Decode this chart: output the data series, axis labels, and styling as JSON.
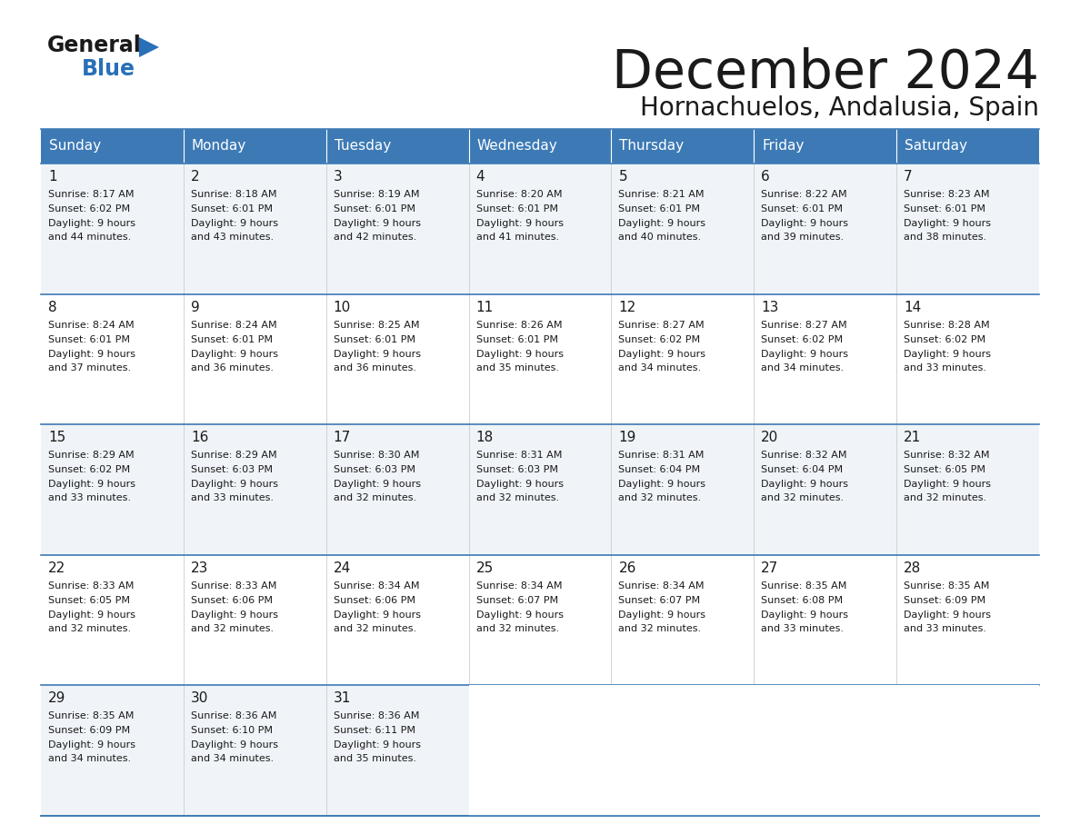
{
  "title": "December 2024",
  "subtitle": "Hornachuelos, Andalusia, Spain",
  "header_color": "#3d7ab5",
  "header_text_color": "#ffffff",
  "day_names": [
    "Sunday",
    "Monday",
    "Tuesday",
    "Wednesday",
    "Thursday",
    "Friday",
    "Saturday"
  ],
  "days": [
    {
      "day": 1,
      "col": 0,
      "row": 0,
      "sunrise": "8:17 AM",
      "sunset": "6:02 PM",
      "daylight_line1": "Daylight: 9 hours",
      "daylight_line2": "and 44 minutes."
    },
    {
      "day": 2,
      "col": 1,
      "row": 0,
      "sunrise": "8:18 AM",
      "sunset": "6:01 PM",
      "daylight_line1": "Daylight: 9 hours",
      "daylight_line2": "and 43 minutes."
    },
    {
      "day": 3,
      "col": 2,
      "row": 0,
      "sunrise": "8:19 AM",
      "sunset": "6:01 PM",
      "daylight_line1": "Daylight: 9 hours",
      "daylight_line2": "and 42 minutes."
    },
    {
      "day": 4,
      "col": 3,
      "row": 0,
      "sunrise": "8:20 AM",
      "sunset": "6:01 PM",
      "daylight_line1": "Daylight: 9 hours",
      "daylight_line2": "and 41 minutes."
    },
    {
      "day": 5,
      "col": 4,
      "row": 0,
      "sunrise": "8:21 AM",
      "sunset": "6:01 PM",
      "daylight_line1": "Daylight: 9 hours",
      "daylight_line2": "and 40 minutes."
    },
    {
      "day": 6,
      "col": 5,
      "row": 0,
      "sunrise": "8:22 AM",
      "sunset": "6:01 PM",
      "daylight_line1": "Daylight: 9 hours",
      "daylight_line2": "and 39 minutes."
    },
    {
      "day": 7,
      "col": 6,
      "row": 0,
      "sunrise": "8:23 AM",
      "sunset": "6:01 PM",
      "daylight_line1": "Daylight: 9 hours",
      "daylight_line2": "and 38 minutes."
    },
    {
      "day": 8,
      "col": 0,
      "row": 1,
      "sunrise": "8:24 AM",
      "sunset": "6:01 PM",
      "daylight_line1": "Daylight: 9 hours",
      "daylight_line2": "and 37 minutes."
    },
    {
      "day": 9,
      "col": 1,
      "row": 1,
      "sunrise": "8:24 AM",
      "sunset": "6:01 PM",
      "daylight_line1": "Daylight: 9 hours",
      "daylight_line2": "and 36 minutes."
    },
    {
      "day": 10,
      "col": 2,
      "row": 1,
      "sunrise": "8:25 AM",
      "sunset": "6:01 PM",
      "daylight_line1": "Daylight: 9 hours",
      "daylight_line2": "and 36 minutes."
    },
    {
      "day": 11,
      "col": 3,
      "row": 1,
      "sunrise": "8:26 AM",
      "sunset": "6:01 PM",
      "daylight_line1": "Daylight: 9 hours",
      "daylight_line2": "and 35 minutes."
    },
    {
      "day": 12,
      "col": 4,
      "row": 1,
      "sunrise": "8:27 AM",
      "sunset": "6:02 PM",
      "daylight_line1": "Daylight: 9 hours",
      "daylight_line2": "and 34 minutes."
    },
    {
      "day": 13,
      "col": 5,
      "row": 1,
      "sunrise": "8:27 AM",
      "sunset": "6:02 PM",
      "daylight_line1": "Daylight: 9 hours",
      "daylight_line2": "and 34 minutes."
    },
    {
      "day": 14,
      "col": 6,
      "row": 1,
      "sunrise": "8:28 AM",
      "sunset": "6:02 PM",
      "daylight_line1": "Daylight: 9 hours",
      "daylight_line2": "and 33 minutes."
    },
    {
      "day": 15,
      "col": 0,
      "row": 2,
      "sunrise": "8:29 AM",
      "sunset": "6:02 PM",
      "daylight_line1": "Daylight: 9 hours",
      "daylight_line2": "and 33 minutes."
    },
    {
      "day": 16,
      "col": 1,
      "row": 2,
      "sunrise": "8:29 AM",
      "sunset": "6:03 PM",
      "daylight_line1": "Daylight: 9 hours",
      "daylight_line2": "and 33 minutes."
    },
    {
      "day": 17,
      "col": 2,
      "row": 2,
      "sunrise": "8:30 AM",
      "sunset": "6:03 PM",
      "daylight_line1": "Daylight: 9 hours",
      "daylight_line2": "and 32 minutes."
    },
    {
      "day": 18,
      "col": 3,
      "row": 2,
      "sunrise": "8:31 AM",
      "sunset": "6:03 PM",
      "daylight_line1": "Daylight: 9 hours",
      "daylight_line2": "and 32 minutes."
    },
    {
      "day": 19,
      "col": 4,
      "row": 2,
      "sunrise": "8:31 AM",
      "sunset": "6:04 PM",
      "daylight_line1": "Daylight: 9 hours",
      "daylight_line2": "and 32 minutes."
    },
    {
      "day": 20,
      "col": 5,
      "row": 2,
      "sunrise": "8:32 AM",
      "sunset": "6:04 PM",
      "daylight_line1": "Daylight: 9 hours",
      "daylight_line2": "and 32 minutes."
    },
    {
      "day": 21,
      "col": 6,
      "row": 2,
      "sunrise": "8:32 AM",
      "sunset": "6:05 PM",
      "daylight_line1": "Daylight: 9 hours",
      "daylight_line2": "and 32 minutes."
    },
    {
      "day": 22,
      "col": 0,
      "row": 3,
      "sunrise": "8:33 AM",
      "sunset": "6:05 PM",
      "daylight_line1": "Daylight: 9 hours",
      "daylight_line2": "and 32 minutes."
    },
    {
      "day": 23,
      "col": 1,
      "row": 3,
      "sunrise": "8:33 AM",
      "sunset": "6:06 PM",
      "daylight_line1": "Daylight: 9 hours",
      "daylight_line2": "and 32 minutes."
    },
    {
      "day": 24,
      "col": 2,
      "row": 3,
      "sunrise": "8:34 AM",
      "sunset": "6:06 PM",
      "daylight_line1": "Daylight: 9 hours",
      "daylight_line2": "and 32 minutes."
    },
    {
      "day": 25,
      "col": 3,
      "row": 3,
      "sunrise": "8:34 AM",
      "sunset": "6:07 PM",
      "daylight_line1": "Daylight: 9 hours",
      "daylight_line2": "and 32 minutes."
    },
    {
      "day": 26,
      "col": 4,
      "row": 3,
      "sunrise": "8:34 AM",
      "sunset": "6:07 PM",
      "daylight_line1": "Daylight: 9 hours",
      "daylight_line2": "and 32 minutes."
    },
    {
      "day": 27,
      "col": 5,
      "row": 3,
      "sunrise": "8:35 AM",
      "sunset": "6:08 PM",
      "daylight_line1": "Daylight: 9 hours",
      "daylight_line2": "and 33 minutes."
    },
    {
      "day": 28,
      "col": 6,
      "row": 3,
      "sunrise": "8:35 AM",
      "sunset": "6:09 PM",
      "daylight_line1": "Daylight: 9 hours",
      "daylight_line2": "and 33 minutes."
    },
    {
      "day": 29,
      "col": 0,
      "row": 4,
      "sunrise": "8:35 AM",
      "sunset": "6:09 PM",
      "daylight_line1": "Daylight: 9 hours",
      "daylight_line2": "and 34 minutes."
    },
    {
      "day": 30,
      "col": 1,
      "row": 4,
      "sunrise": "8:36 AM",
      "sunset": "6:10 PM",
      "daylight_line1": "Daylight: 9 hours",
      "daylight_line2": "and 34 minutes."
    },
    {
      "day": 31,
      "col": 2,
      "row": 4,
      "sunrise": "8:36 AM",
      "sunset": "6:11 PM",
      "daylight_line1": "Daylight: 9 hours",
      "daylight_line2": "and 35 minutes."
    }
  ],
  "logo_color_general": "#1a1a1a",
  "logo_color_blue": "#2970b8",
  "logo_triangle_color": "#2970b8",
  "row_colors": [
    "#f0f4f8",
    "#ffffff",
    "#f0f4f8",
    "#ffffff",
    "#f0f4f8"
  ]
}
